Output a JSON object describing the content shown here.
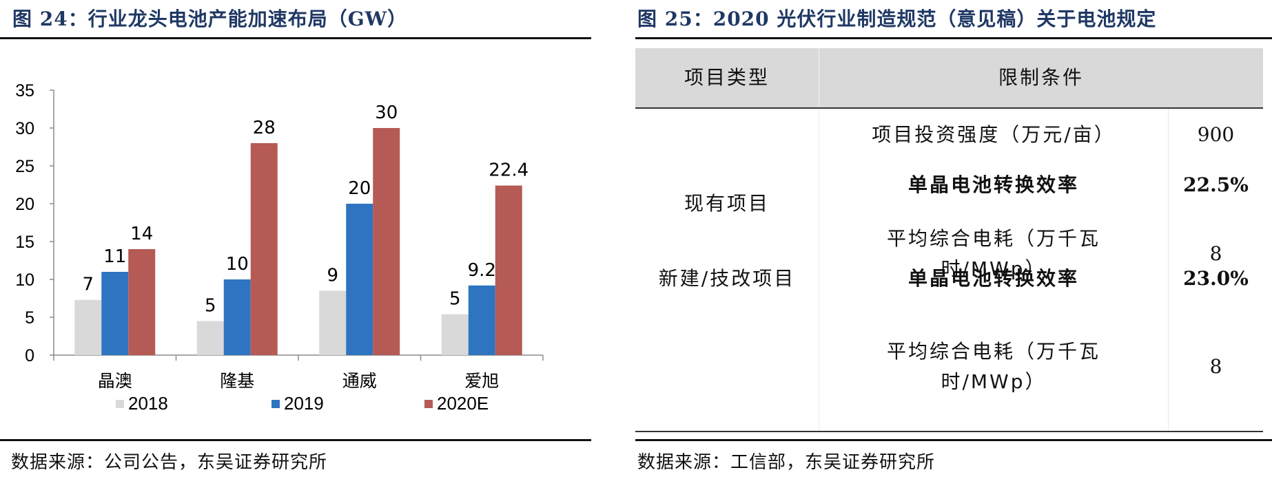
{
  "left": {
    "title": "图 24：行业龙头电池产能加速布局（GW）",
    "source": "数据来源：公司公告，东吴证券研究所"
  },
  "chart_data": {
    "type": "bar",
    "title": "图 24：行业龙头电池产能加速布局（GW）",
    "categories": [
      "晶澳",
      "隆基",
      "通威",
      "爱旭"
    ],
    "series": [
      {
        "name": "2018",
        "values": [
          7.3,
          4.5,
          8.5,
          5.4
        ],
        "labels": [
          "7",
          "5",
          "9",
          "5"
        ],
        "color": "#d9d9d9"
      },
      {
        "name": "2019",
        "values": [
          11,
          10,
          20,
          9.2
        ],
        "labels": [
          "11",
          "10",
          "20",
          "9.2"
        ],
        "color": "#2e74c0"
      },
      {
        "name": "2020E",
        "values": [
          14,
          28,
          30,
          22.4
        ],
        "labels": [
          "14",
          "28",
          "30",
          "22.4"
        ],
        "color": "#b55a55"
      }
    ],
    "ylim": [
      0,
      35
    ],
    "yticks": [
      0,
      5,
      10,
      15,
      20,
      25,
      30,
      35
    ],
    "grid": false,
    "legend_position": "bottom"
  },
  "right": {
    "title": "图 25：2020 光伏行业制造规范（意见稿）关于电池规定",
    "source": "数据来源：工信部，东吴证券研究所",
    "table": {
      "headers": [
        "项目类型",
        "限制条件"
      ],
      "groups": [
        {
          "type": "现有项目",
          "rows": [
            {
              "item": "项目投资强度（万元/亩）",
              "value": "900",
              "bold": false
            },
            {
              "item": "单晶电池转换效率",
              "value": "22.5%",
              "bold": true
            },
            {
              "item": "平均综合电耗（万千瓦时/MWp）",
              "value": "8",
              "bold": false
            }
          ]
        },
        {
          "type": "新建/技改项目",
          "rows": [
            {
              "item": "单晶电池转换效率",
              "value": "23.0%",
              "bold": true
            },
            {
              "item": "平均综合电耗（万千瓦时/MWp）",
              "value": "8",
              "bold": false
            }
          ]
        }
      ]
    }
  }
}
